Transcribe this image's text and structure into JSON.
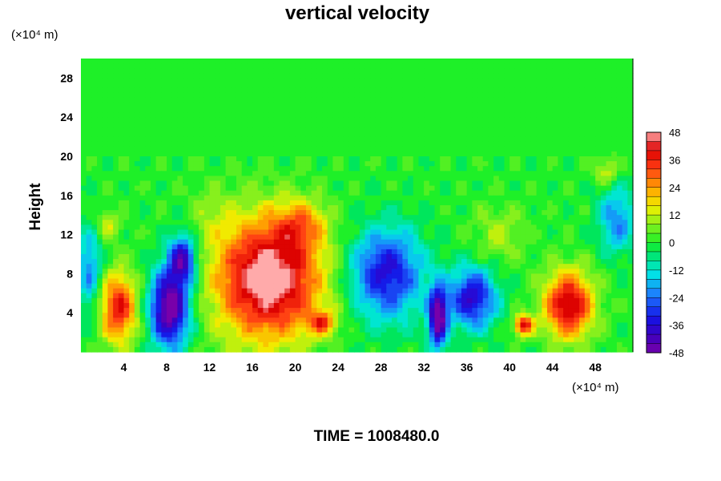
{
  "chart_data": {
    "type": "heatmap",
    "title": "vertical velocity",
    "ylabel": "Height",
    "y_unit_label": "(×10⁴ m)",
    "x_unit_label": "(×10⁴ m)",
    "footer": "TIME = 1008480.0",
    "xlim": [
      0,
      51.5
    ],
    "ylim": [
      0,
      30
    ],
    "x_ticks": [
      "4",
      "8",
      "12",
      "16",
      "20",
      "24",
      "28",
      "32",
      "36",
      "40",
      "44",
      "48"
    ],
    "y_ticks": [
      "4",
      "8",
      "12",
      "16",
      "20",
      "24",
      "28"
    ],
    "colorbar_ticks": [
      "48",
      "36",
      "24",
      "12",
      "0",
      "-12",
      "-24",
      "-36",
      "-48"
    ],
    "value_range": [
      -48,
      48
    ],
    "features": [
      {
        "x": 3.5,
        "y": 4.5,
        "rx": 1.8,
        "ry": 3.8,
        "value": 38
      },
      {
        "x": 2.5,
        "y": 13,
        "rx": 1.2,
        "ry": 1.5,
        "value": 14
      },
      {
        "x": 8.3,
        "y": 4.5,
        "rx": 1.9,
        "ry": 4.2,
        "value": -52
      },
      {
        "x": 9.5,
        "y": 9.5,
        "rx": 1.3,
        "ry": 2.6,
        "value": -40
      },
      {
        "x": 17.5,
        "y": 7.5,
        "rx": 5.2,
        "ry": 6.5,
        "value": 52
      },
      {
        "x": 20.5,
        "y": 13,
        "rx": 2.5,
        "ry": 2.5,
        "value": 18
      },
      {
        "x": 22.5,
        "y": 3,
        "rx": 1.3,
        "ry": 1.2,
        "value": 26
      },
      {
        "x": 28.5,
        "y": 8,
        "rx": 3.5,
        "ry": 4.8,
        "value": -36
      },
      {
        "x": 33.3,
        "y": 3.5,
        "rx": 0.9,
        "ry": 3.2,
        "value": -52
      },
      {
        "x": 36.5,
        "y": 5.5,
        "rx": 2.3,
        "ry": 3.2,
        "value": -38
      },
      {
        "x": 41.3,
        "y": 2.7,
        "rx": 0.9,
        "ry": 1.1,
        "value": 40
      },
      {
        "x": 45.5,
        "y": 4.8,
        "rx": 2.4,
        "ry": 3.6,
        "value": 44
      },
      {
        "x": 50,
        "y": 13.5,
        "rx": 1.8,
        "ry": 3.5,
        "value": -22
      },
      {
        "x": 0.8,
        "y": 8.5,
        "rx": 1.2,
        "ry": 4.5,
        "value": -22
      },
      {
        "x": 49,
        "y": 18.5,
        "rx": 1.2,
        "ry": 1.5,
        "value": 14
      },
      {
        "x": 39,
        "y": 12,
        "rx": 2.5,
        "ry": 3.0,
        "value": 10
      },
      {
        "x": 12,
        "y": 14,
        "rx": 2.0,
        "ry": 3.0,
        "value": 6
      }
    ]
  }
}
